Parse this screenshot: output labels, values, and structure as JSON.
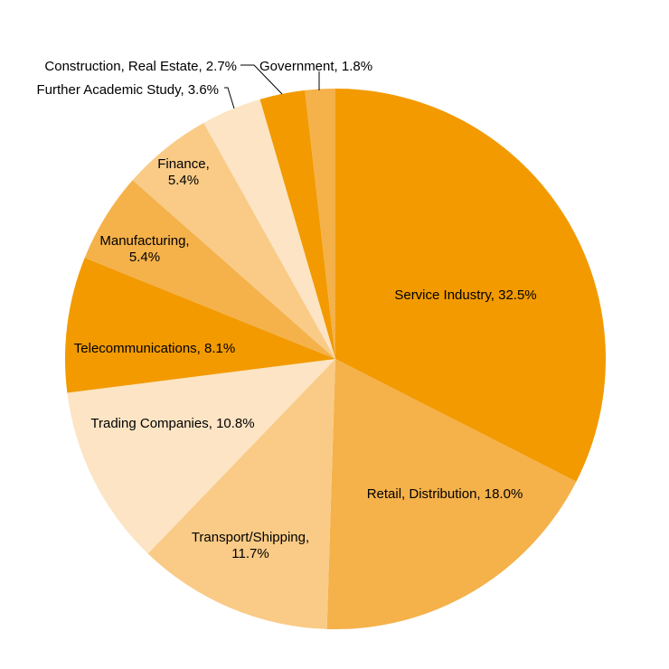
{
  "chart_data": {
    "type": "pie",
    "title": "",
    "slices": [
      {
        "label": "Service Industry",
        "value": 32.5,
        "display": "Service Industry,  32.5%",
        "color": "#F29A00"
      },
      {
        "label": "Retail, Distribution",
        "value": 18.0,
        "display": "Retail,  Distribution, 18.0%",
        "color": "#F5B14A"
      },
      {
        "label": "Transport/Shipping",
        "value": 11.7,
        "display": "Transport/Shipping,|11.7%",
        "color": "#F9CB87"
      },
      {
        "label": "Trading Companies",
        "value": 10.8,
        "display": "Trading  Companies, 10.8%",
        "color": "#FCE4C4"
      },
      {
        "label": "Telecommunications",
        "value": 8.1,
        "display": "Telecommunications,  8.1%",
        "color": "#F29A00"
      },
      {
        "label": "Manufacturing",
        "value": 5.4,
        "display": "Manufacturing,|5.4%",
        "color": "#F5B14A"
      },
      {
        "label": "Finance",
        "value": 5.4,
        "display": "Finance,|5.4%",
        "color": "#F9CB87"
      },
      {
        "label": "Further Academic Study",
        "value": 3.6,
        "display": "Further Academic Study,  3.6%",
        "color": "#FCE4C4"
      },
      {
        "label": "Construction, Real Estate",
        "value": 2.7,
        "display": "Construction,  Real Estate, 2.7%",
        "color": "#F29A00"
      },
      {
        "label": "Government",
        "value": 1.8,
        "display": "Government,  1.8%",
        "color": "#F5B14A"
      }
    ],
    "start_angle": "12 o'clock",
    "direction": "clockwise",
    "legend": "none"
  }
}
